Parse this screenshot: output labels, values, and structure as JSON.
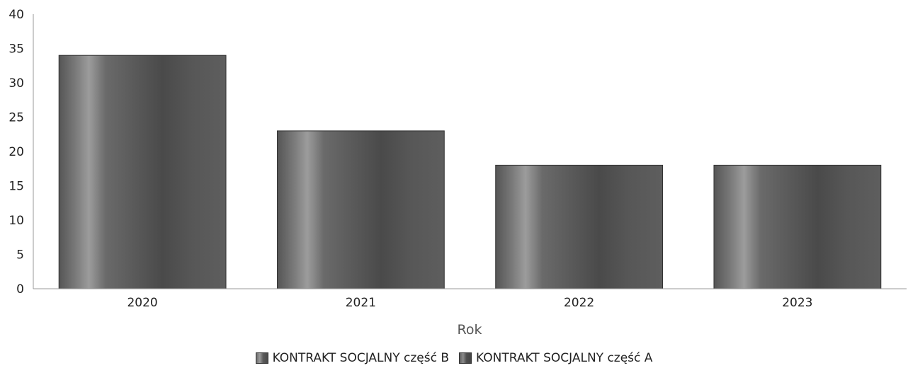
{
  "chart_data": {
    "type": "bar",
    "title": "",
    "xlabel": "Rok",
    "ylabel": "",
    "categories": [
      "2020",
      "2021",
      "2022",
      "2023"
    ],
    "values": [
      34,
      23,
      18,
      18
    ],
    "ylim": [
      0,
      40
    ],
    "yticks": [
      0,
      5,
      10,
      15,
      20,
      25,
      30,
      35,
      40
    ],
    "grid": false,
    "legend": {
      "placement": "bottom",
      "entries": [
        "KONTRAKT SOCJALNY część B",
        "KONTRAKT SOCJALNY część A"
      ]
    }
  },
  "colors": {
    "bar_dark": "#4a4a4a",
    "bar_light": "#9a9a9a",
    "axis": "#888888",
    "text": "#222222"
  }
}
